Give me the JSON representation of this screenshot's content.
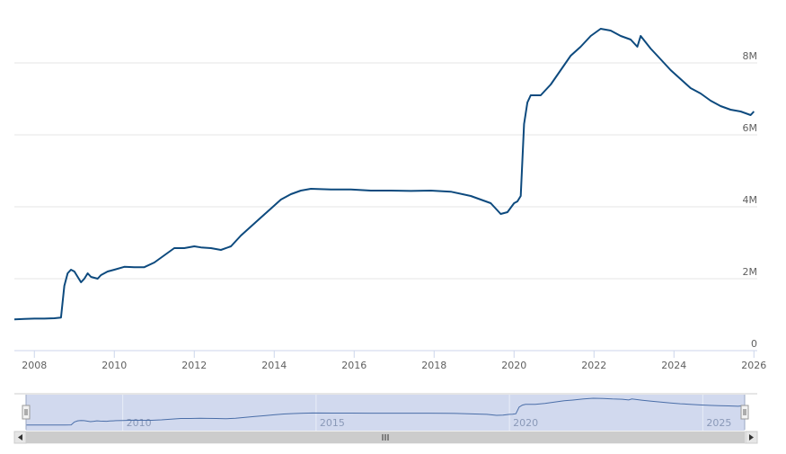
{
  "chart_data": {
    "type": "line",
    "title": "",
    "xlabel": "",
    "ylabel": "",
    "y_ticks": [
      "0",
      "2M",
      "4M",
      "6M",
      "8M"
    ],
    "y_tick_values": [
      0,
      2000000,
      4000000,
      6000000,
      8000000
    ],
    "ylim": [
      0,
      9500000
    ],
    "x_ticks": [
      "2008",
      "2010",
      "2012",
      "2014",
      "2016",
      "2018",
      "2020",
      "2022",
      "2024",
      "2026"
    ],
    "xlim": [
      "2007-07",
      "2026-02"
    ],
    "grid": "horizontal",
    "legend": "none",
    "series": [
      {
        "x": [
          "2007-07",
          "2007-10",
          "2008-01",
          "2008-04",
          "2008-07",
          "2008-09",
          "2008-10",
          "2008-11",
          "2008-12",
          "2009-01",
          "2009-03",
          "2009-04",
          "2009-05",
          "2009-06",
          "2009-08",
          "2009-09",
          "2009-10",
          "2009-11",
          "2010-01",
          "2010-04",
          "2010-07",
          "2010-10",
          "2011-01",
          "2011-04",
          "2011-07",
          "2011-10",
          "2012-01",
          "2012-03",
          "2012-06",
          "2012-09",
          "2012-12",
          "2013-03",
          "2013-06",
          "2013-09",
          "2013-12",
          "2014-03",
          "2014-06",
          "2014-09",
          "2014-12",
          "2015-06",
          "2015-12",
          "2016-06",
          "2016-12",
          "2017-06",
          "2017-12",
          "2018-06",
          "2018-12",
          "2019-06",
          "2019-09",
          "2019-11",
          "2020-01",
          "2020-02",
          "2020-03",
          "2020-04",
          "2020-05",
          "2020-06",
          "2020-09",
          "2020-12",
          "2021-03",
          "2021-06",
          "2021-09",
          "2021-12",
          "2022-03",
          "2022-06",
          "2022-09",
          "2022-12",
          "2023-02",
          "2023-03",
          "2023-06",
          "2023-09",
          "2023-12",
          "2024-03",
          "2024-06",
          "2024-09",
          "2024-12",
          "2025-03",
          "2025-06",
          "2025-09",
          "2025-12",
          "2026-01"
        ],
        "y": [
          870000,
          880000,
          890000,
          890000,
          900000,
          920000,
          1800000,
          2150000,
          2250000,
          2200000,
          1900000,
          2000000,
          2150000,
          2050000,
          2000000,
          2100000,
          2150000,
          2200000,
          2250000,
          2330000,
          2320000,
          2320000,
          2450000,
          2650000,
          2850000,
          2850000,
          2900000,
          2870000,
          2850000,
          2800000,
          2900000,
          3200000,
          3450000,
          3700000,
          3950000,
          4200000,
          4350000,
          4450000,
          4500000,
          4480000,
          4480000,
          4450000,
          4450000,
          4440000,
          4450000,
          4420000,
          4300000,
          4100000,
          3800000,
          3850000,
          4100000,
          4150000,
          4300000,
          6300000,
          6900000,
          7100000,
          7100000,
          7400000,
          7800000,
          8200000,
          8450000,
          8750000,
          8950000,
          8900000,
          8750000,
          8650000,
          8450000,
          8750000,
          8400000,
          8100000,
          7800000,
          7550000,
          7300000,
          7150000,
          6950000,
          6800000,
          6700000,
          6650000,
          6550000,
          6650000
        ]
      }
    ],
    "navigator": {
      "x_ticks": [
        "2010",
        "2015",
        "2020",
        "2025"
      ]
    }
  },
  "colors": {
    "series": "#0d4a7e",
    "navigator_fill": "#ccd5ec",
    "navigator_line": "#4a6ea8",
    "grid": "#e6e6e6"
  },
  "icons": {
    "handle_left": "grip-handle-icon",
    "handle_right": "grip-handle-icon",
    "scroll_left": "arrow-left-icon",
    "scroll_right": "arrow-right-icon",
    "scroll_thumb": "grip-lines-icon"
  }
}
